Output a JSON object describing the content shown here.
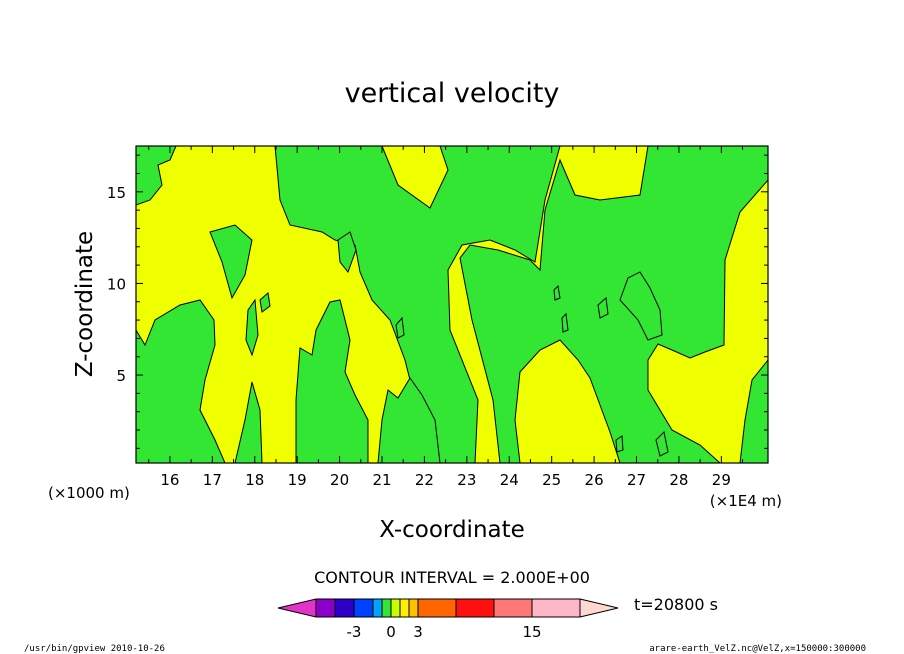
{
  "chart_data": {
    "type": "heatmap",
    "title": "vertical velocity",
    "xlabel": "X-coordinate",
    "ylabel": "Z-coordinate",
    "x_unit_left": "(×1000 m)",
    "x_unit_right": "(×1E4 m)",
    "xlim": [
      15.2,
      30.1
    ],
    "ylim": [
      0.2,
      17.5
    ],
    "x_ticks": [
      16,
      17,
      18,
      19,
      20,
      21,
      22,
      23,
      24,
      25,
      26,
      27,
      28,
      29
    ],
    "y_ticks": [
      5,
      10,
      15
    ],
    "fill_colors": {
      "positive": "#f0ff00",
      "negative": "#33e633",
      "contour": "#000000"
    },
    "contour_interval_label": "CONTOUR INTERVAL = 2.000E+00",
    "time_label": "t=20800 s",
    "colorbar": {
      "colors": [
        "#e233c8",
        "#8a00c8",
        "#2c00c8",
        "#0040ff",
        "#00a6ff",
        "#33e633",
        "#c8ff00",
        "#ffee00",
        "#ffc000",
        "#ff6600",
        "#ff1010",
        "#ff7878",
        "#ffb6c8",
        "#ffd8d0"
      ],
      "labels": [
        "-3",
        "0",
        "3",
        "15"
      ]
    },
    "footer_left": "/usr/bin/gpview  2010-10-26",
    "footer_right": "arare-earth_VelZ.nc@VelZ,x=150000:300000"
  }
}
